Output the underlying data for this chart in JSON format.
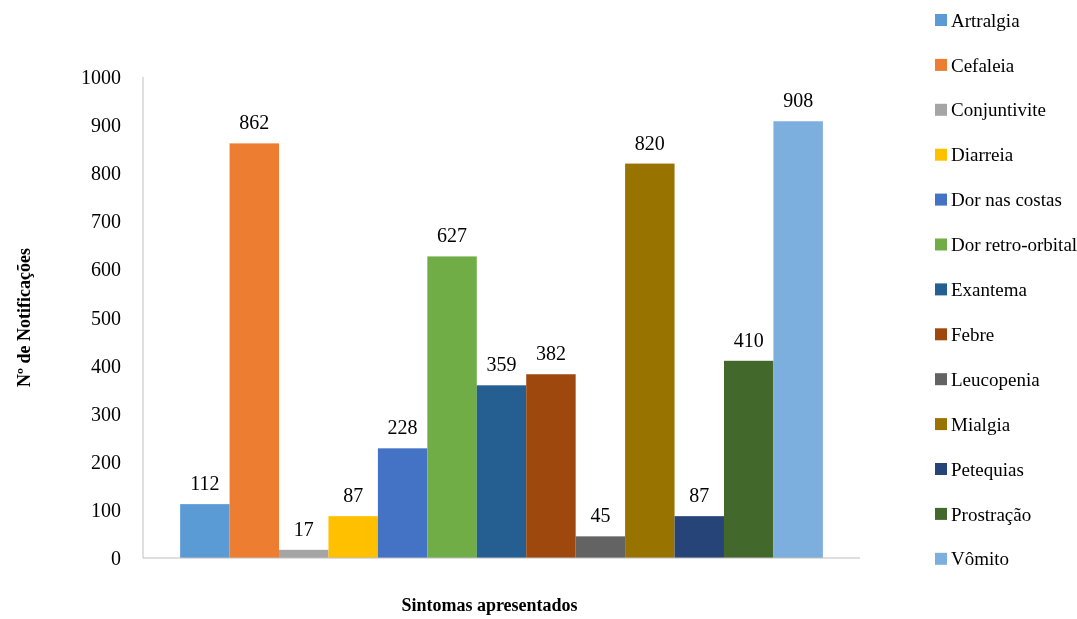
{
  "chart_data": {
    "type": "bar",
    "xlabel": "Sintomas apresentados",
    "ylabel": "Nº de Notificações",
    "categories": [
      null
    ],
    "series": [
      {
        "name": "Artralgia",
        "color": "#5b9bd5",
        "values": [
          112
        ]
      },
      {
        "name": "Cefaleia",
        "color": "#ed7d31",
        "values": [
          862
        ]
      },
      {
        "name": "Conjuntivite",
        "color": "#a5a5a5",
        "values": [
          17
        ]
      },
      {
        "name": "Diarreia",
        "color": "#ffc000",
        "values": [
          87
        ]
      },
      {
        "name": "Dor nas costas",
        "color": "#4472c4",
        "values": [
          228
        ]
      },
      {
        "name": "Dor retro-orbital",
        "color": "#70ad47",
        "values": [
          627
        ]
      },
      {
        "name": "Exantema",
        "color": "#255e91",
        "values": [
          359
        ]
      },
      {
        "name": "Febre",
        "color": "#9e480e",
        "values": [
          382
        ]
      },
      {
        "name": "Leucopenia",
        "color": "#636363",
        "values": [
          45
        ]
      },
      {
        "name": "Mialgia",
        "color": "#997300",
        "values": [
          820
        ]
      },
      {
        "name": "Petequias",
        "color": "#264478",
        "values": [
          87
        ]
      },
      {
        "name": "Prostração",
        "color": "#43682b",
        "values": [
          410
        ]
      },
      {
        "name": "Vômito",
        "color": "#7cafdd",
        "values": [
          908
        ]
      }
    ],
    "ylim": [
      0,
      1000
    ],
    "yticks": [
      0,
      100,
      200,
      300,
      400,
      500,
      600,
      700,
      800,
      900,
      1000
    ],
    "data_labels": true,
    "legend": "right",
    "grid": false
  }
}
